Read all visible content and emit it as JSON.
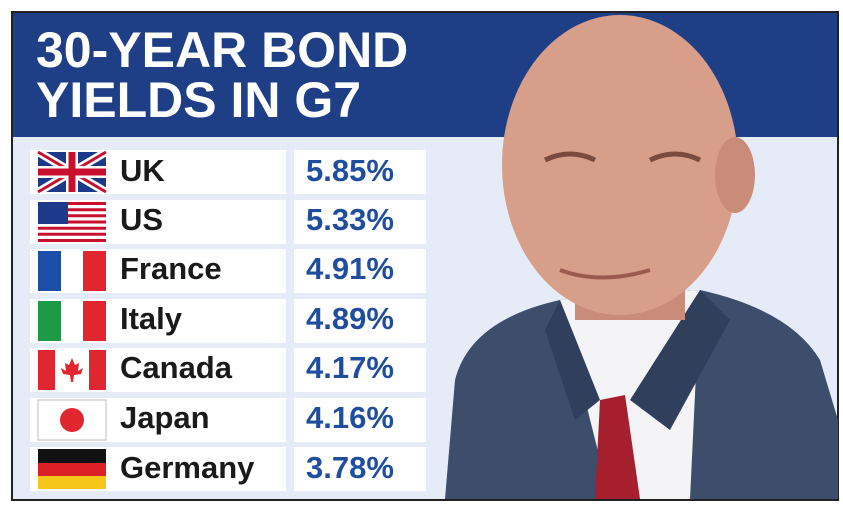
{
  "header": {
    "title_lines": [
      "30-YEAR BOND",
      "YIELDS IN G7"
    ]
  },
  "table": {
    "rows": [
      [
        "UK",
        "5.85%"
      ],
      [
        "US",
        "5.33%"
      ],
      [
        "France",
        "4.91%"
      ],
      [
        "Italy",
        "4.89%"
      ],
      [
        "Canada",
        "4.17%"
      ],
      [
        "Japan",
        "4.16%"
      ],
      [
        "Germany",
        "3.78%"
      ]
    ]
  }
}
